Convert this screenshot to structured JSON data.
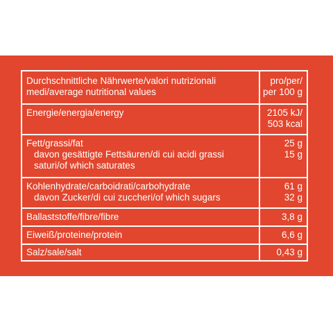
{
  "nutrition_table": {
    "header": {
      "label": "Durchschnittliche Nährwerte/valori nutrizionali\nmedi/average nutritional values",
      "value": "pro/per/\nper 100 g"
    },
    "energy": {
      "label": "Energie/energia/energy",
      "value": "2105 kJ/\n503 kcal"
    },
    "fat": {
      "label": "Fett/grassi/fat",
      "value": "25 g",
      "sub_label": "davon gesättigte Fettsäuren/di cui acidi grassi\nsaturi/of which saturates",
      "sub_value": "15 g"
    },
    "carbohydrate": {
      "label": "Kohlenhydrate/carboidrati/carbohydrate",
      "value": "61 g",
      "sub_label": "davon Zucker/di cui zuccheri/of which sugars",
      "sub_value": "32 g"
    },
    "fibre": {
      "label": "Ballaststoffe/fibre/fibre",
      "value": "3,8 g"
    },
    "protein": {
      "label": "Eiweiß/proteine/protein",
      "value": "6,6 g"
    },
    "salt": {
      "label": "Salz/sale/salt",
      "value": "0,43 g"
    }
  },
  "colors": {
    "background": "#e2462e",
    "text": "#ffffff",
    "page": "#ffffff"
  }
}
